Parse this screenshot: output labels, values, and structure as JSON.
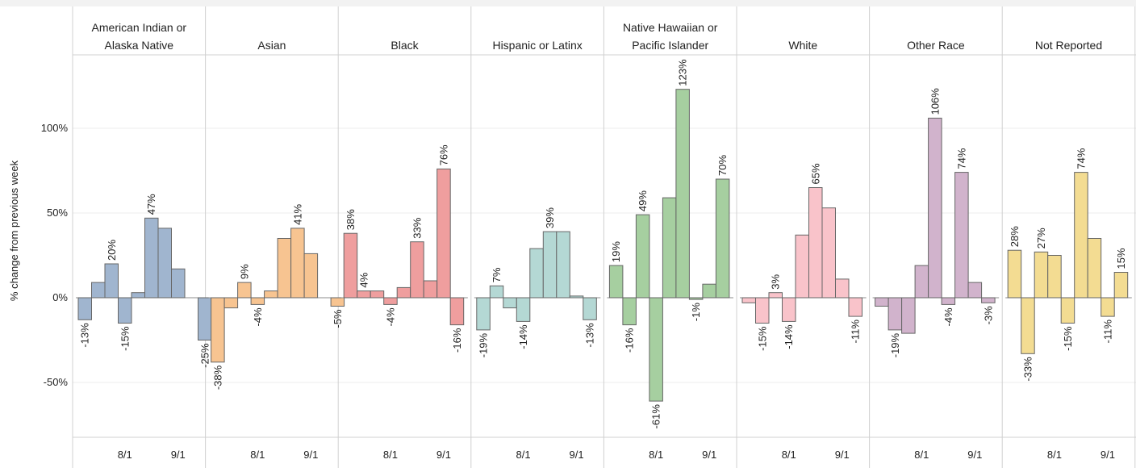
{
  "chart_data": {
    "type": "bar",
    "ylabel": "% change from previous week",
    "ylim": [
      -83,
      155
    ],
    "y_ticks": [
      {
        "value": 100,
        "label": "100%"
      },
      {
        "value": 50,
        "label": "50%"
      },
      {
        "value": 0,
        "label": "0%"
      },
      {
        "value": -50,
        "label": "-50%"
      }
    ],
    "x_ticks": [
      {
        "index": 3.5,
        "label": "8/1"
      },
      {
        "index": 7.5,
        "label": "9/1"
      }
    ],
    "bar_count": 10,
    "grid": true,
    "panels": [
      {
        "title": [
          "American Indian or",
          "Alaska Native"
        ],
        "color": "#a0b5cf",
        "values": [
          -13,
          9,
          20,
          -15,
          3,
          47,
          41,
          17,
          0,
          -25
        ],
        "labels": [
          "-13%",
          "",
          "20%",
          "-15%",
          "",
          "47%",
          "",
          "",
          "",
          "-25%"
        ]
      },
      {
        "title": [
          "",
          "Asian"
        ],
        "color": "#f7c491",
        "values": [
          -38,
          -6,
          9,
          -4,
          4,
          35,
          41,
          26,
          0,
          -5
        ],
        "labels": [
          "-38%",
          "",
          "9%",
          "-4%",
          "",
          "",
          "41%",
          "",
          "",
          "-5%"
        ]
      },
      {
        "title": [
          "",
          "Black"
        ],
        "color": "#ef9e9e",
        "values": [
          38,
          4,
          4,
          -4,
          6,
          33,
          10,
          76,
          -16,
          0
        ],
        "labels": [
          "38%",
          "4%",
          "",
          "-4%",
          "",
          "33%",
          "",
          "76%",
          "-16%",
          ""
        ]
      },
      {
        "title": [
          "",
          "Hispanic or Latinx"
        ],
        "color": "#b4d8d4",
        "values": [
          -19,
          7,
          -6,
          -14,
          29,
          39,
          39,
          1,
          -13,
          0
        ],
        "labels": [
          "-19%",
          "7%",
          "",
          "-14%",
          "",
          "39%",
          "",
          "",
          "-13%",
          ""
        ]
      },
      {
        "title": [
          "Native Hawaiian or",
          "Pacific Islander"
        ],
        "color": "#a6cfa0",
        "values": [
          19,
          -16,
          49,
          -61,
          59,
          123,
          -1,
          8,
          70,
          0
        ],
        "labels": [
          "19%",
          "-16%",
          "49%",
          "-61%",
          "",
          "123%",
          "-1%",
          "",
          "70%",
          ""
        ]
      },
      {
        "title": [
          "",
          "White"
        ],
        "color": "#f9c3ca",
        "values": [
          -3,
          -15,
          3,
          -14,
          37,
          65,
          53,
          11,
          -11,
          0
        ],
        "labels": [
          "",
          "-15%",
          "3%",
          "-14%",
          "",
          "65%",
          "",
          "",
          "-11%",
          ""
        ]
      },
      {
        "title": [
          "",
          "Other Race"
        ],
        "color": "#d1b3cc",
        "values": [
          -5,
          -19,
          -21,
          19,
          106,
          -4,
          74,
          9,
          -3,
          0
        ],
        "labels": [
          "",
          "-19%",
          "",
          "",
          "106%",
          "-4%",
          "74%",
          "",
          "-3%",
          ""
        ]
      },
      {
        "title": [
          "",
          "Not Reported"
        ],
        "color": "#f3dc92",
        "values": [
          28,
          -33,
          27,
          25,
          -15,
          74,
          35,
          -11,
          15,
          0
        ],
        "labels": [
          "28%",
          "-33%",
          "27%",
          "",
          "-15%",
          "74%",
          "",
          "-11%",
          "15%",
          ""
        ]
      }
    ]
  }
}
